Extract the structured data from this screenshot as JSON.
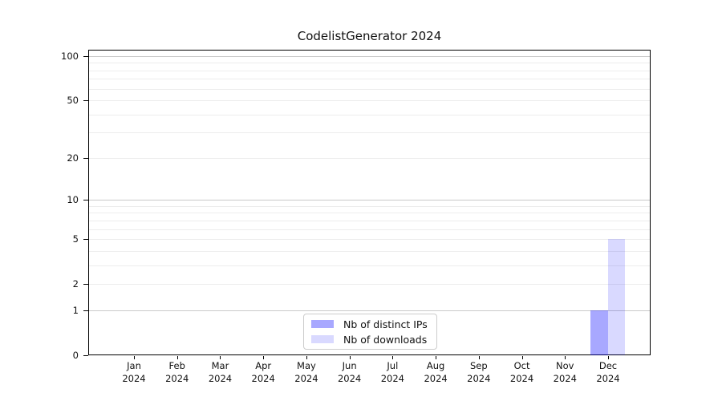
{
  "title": "CodelistGenerator 2024",
  "chart_data": {
    "type": "bar",
    "title": "CodelistGenerator 2024",
    "categories": [
      "Jan",
      "Feb",
      "Mar",
      "Apr",
      "May",
      "Jun",
      "Jul",
      "Aug",
      "Sep",
      "Oct",
      "Nov",
      "Dec"
    ],
    "category_year": "2024",
    "series": [
      {
        "name": "Nb of distinct IPs",
        "color": "rgba(0,0,255,0.34)",
        "color_hex_on_white": "#a6a6fa",
        "values": [
          0,
          0,
          0,
          0,
          0,
          0,
          0,
          0,
          0,
          0,
          0,
          1
        ]
      },
      {
        "name": "Nb of downloads",
        "color": "rgba(0,0,255,0.15)",
        "color_hex_on_white": "#dadafa",
        "values": [
          0,
          0,
          0,
          0,
          0,
          0,
          0,
          0,
          0,
          0,
          0,
          5
        ]
      }
    ],
    "xlabel": "",
    "ylabel": "",
    "yaxis": {
      "scale": "log1p",
      "tick_values": [
        0,
        1,
        2,
        5,
        10,
        20,
        50,
        100
      ],
      "tick_labels": [
        "0",
        "1",
        "2",
        "5",
        "10",
        "20",
        "50",
        "100"
      ],
      "major_gridlines": [
        1,
        10,
        100
      ],
      "minor_gridlines": [
        2,
        3,
        4,
        5,
        6,
        7,
        8,
        9,
        20,
        30,
        40,
        50,
        60,
        70,
        80,
        90
      ],
      "ylim": [
        0,
        110
      ]
    },
    "legend": {
      "position": "lower center",
      "entries": [
        "Nb of distinct IPs",
        "Nb of downloads"
      ]
    },
    "colors": {
      "major_grid": "#c9c9c9",
      "minor_grid": "#ededed",
      "spine": "#000000",
      "background": "#ffffff"
    }
  }
}
